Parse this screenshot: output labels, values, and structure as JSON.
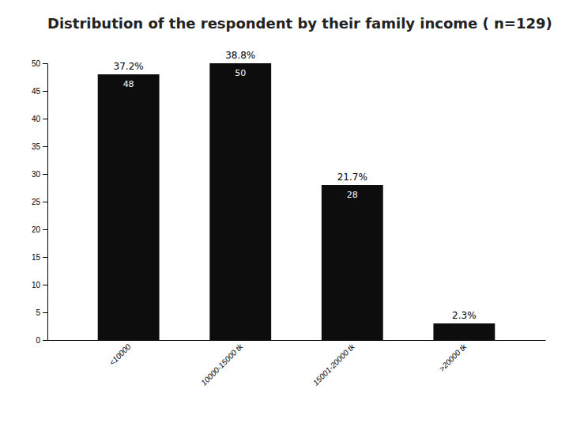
{
  "chart_data": {
    "type": "bar",
    "title": "Distribution of the respondent by their family income ( n=129)",
    "categories": [
      "<10000",
      "10000-15000 tk",
      "15001-20000 tk",
      ">20000 tk"
    ],
    "values": [
      48,
      50,
      28,
      3
    ],
    "value_labels": [
      "48",
      "50",
      "28",
      null
    ],
    "data_labels": true,
    "percentages": [
      "37.2%",
      "38.8%",
      "21.7%",
      "2.3%"
    ],
    "color": "#0d0d0d",
    "ylim": [
      0,
      50
    ],
    "yticks": [
      0,
      5,
      10,
      15,
      20,
      25,
      30,
      35,
      40,
      45,
      50
    ],
    "grid": false
  }
}
